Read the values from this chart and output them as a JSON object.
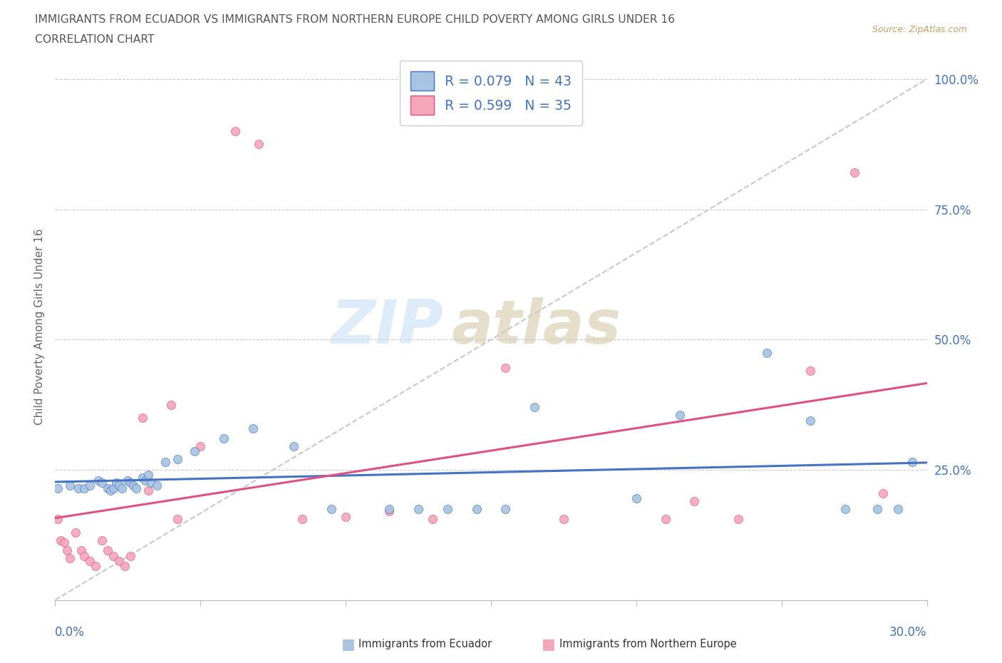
{
  "title_line1": "IMMIGRANTS FROM ECUADOR VS IMMIGRANTS FROM NORTHERN EUROPE CHILD POVERTY AMONG GIRLS UNDER 16",
  "title_line2": "CORRELATION CHART",
  "source": "Source: ZipAtlas.com",
  "ylabel": "Child Poverty Among Girls Under 16",
  "y_ticks": [
    0.0,
    0.25,
    0.5,
    0.75,
    1.0
  ],
  "y_tick_labels": [
    "",
    "25.0%",
    "50.0%",
    "75.0%",
    "100.0%"
  ],
  "ecuador_color": "#a8c4e0",
  "ne_color": "#f4a7b9",
  "ecuador_line_color": "#4472c4",
  "ne_line_color": "#e05080",
  "diag_color": "#c8c8c8",
  "legend_ecuador": "R = 0.079   N = 43",
  "legend_ne": "R = 0.599   N = 35",
  "legend_text_color": "#4472c4",
  "watermark_zip": "ZIP",
  "watermark_atlas": "atlas",
  "xmin": 0.0,
  "xmax": 0.3,
  "ymin": 0.0,
  "ymax": 1.05,
  "ecuador_x": [
    0.001,
    0.005,
    0.008,
    0.01,
    0.012,
    0.015,
    0.016,
    0.018,
    0.019,
    0.02,
    0.021,
    0.022,
    0.023,
    0.025,
    0.026,
    0.027,
    0.028,
    0.03,
    0.031,
    0.032,
    0.033,
    0.035,
    0.038,
    0.042,
    0.048,
    0.058,
    0.068,
    0.082,
    0.095,
    0.115,
    0.125,
    0.135,
    0.145,
    0.155,
    0.165,
    0.2,
    0.215,
    0.245,
    0.26,
    0.272,
    0.283,
    0.29,
    0.295
  ],
  "ecuador_y": [
    0.215,
    0.22,
    0.215,
    0.215,
    0.22,
    0.23,
    0.225,
    0.215,
    0.21,
    0.215,
    0.225,
    0.22,
    0.215,
    0.23,
    0.225,
    0.22,
    0.215,
    0.235,
    0.23,
    0.24,
    0.225,
    0.22,
    0.265,
    0.27,
    0.285,
    0.31,
    0.33,
    0.295,
    0.175,
    0.175,
    0.175,
    0.175,
    0.175,
    0.175,
    0.37,
    0.195,
    0.355,
    0.475,
    0.345,
    0.175,
    0.175,
    0.175,
    0.265
  ],
  "ne_x": [
    0.001,
    0.002,
    0.003,
    0.004,
    0.005,
    0.007,
    0.009,
    0.01,
    0.012,
    0.014,
    0.016,
    0.018,
    0.02,
    0.022,
    0.024,
    0.026,
    0.03,
    0.032,
    0.04,
    0.042,
    0.05,
    0.062,
    0.07,
    0.085,
    0.1,
    0.115,
    0.13,
    0.155,
    0.175,
    0.21,
    0.22,
    0.235,
    0.26,
    0.275,
    0.285
  ],
  "ne_y": [
    0.155,
    0.115,
    0.11,
    0.095,
    0.08,
    0.13,
    0.095,
    0.085,
    0.075,
    0.065,
    0.115,
    0.095,
    0.085,
    0.075,
    0.065,
    0.085,
    0.35,
    0.21,
    0.375,
    0.155,
    0.295,
    0.9,
    0.875,
    0.155,
    0.16,
    0.17,
    0.155,
    0.445,
    0.155,
    0.155,
    0.19,
    0.155,
    0.44,
    0.82,
    0.205
  ]
}
